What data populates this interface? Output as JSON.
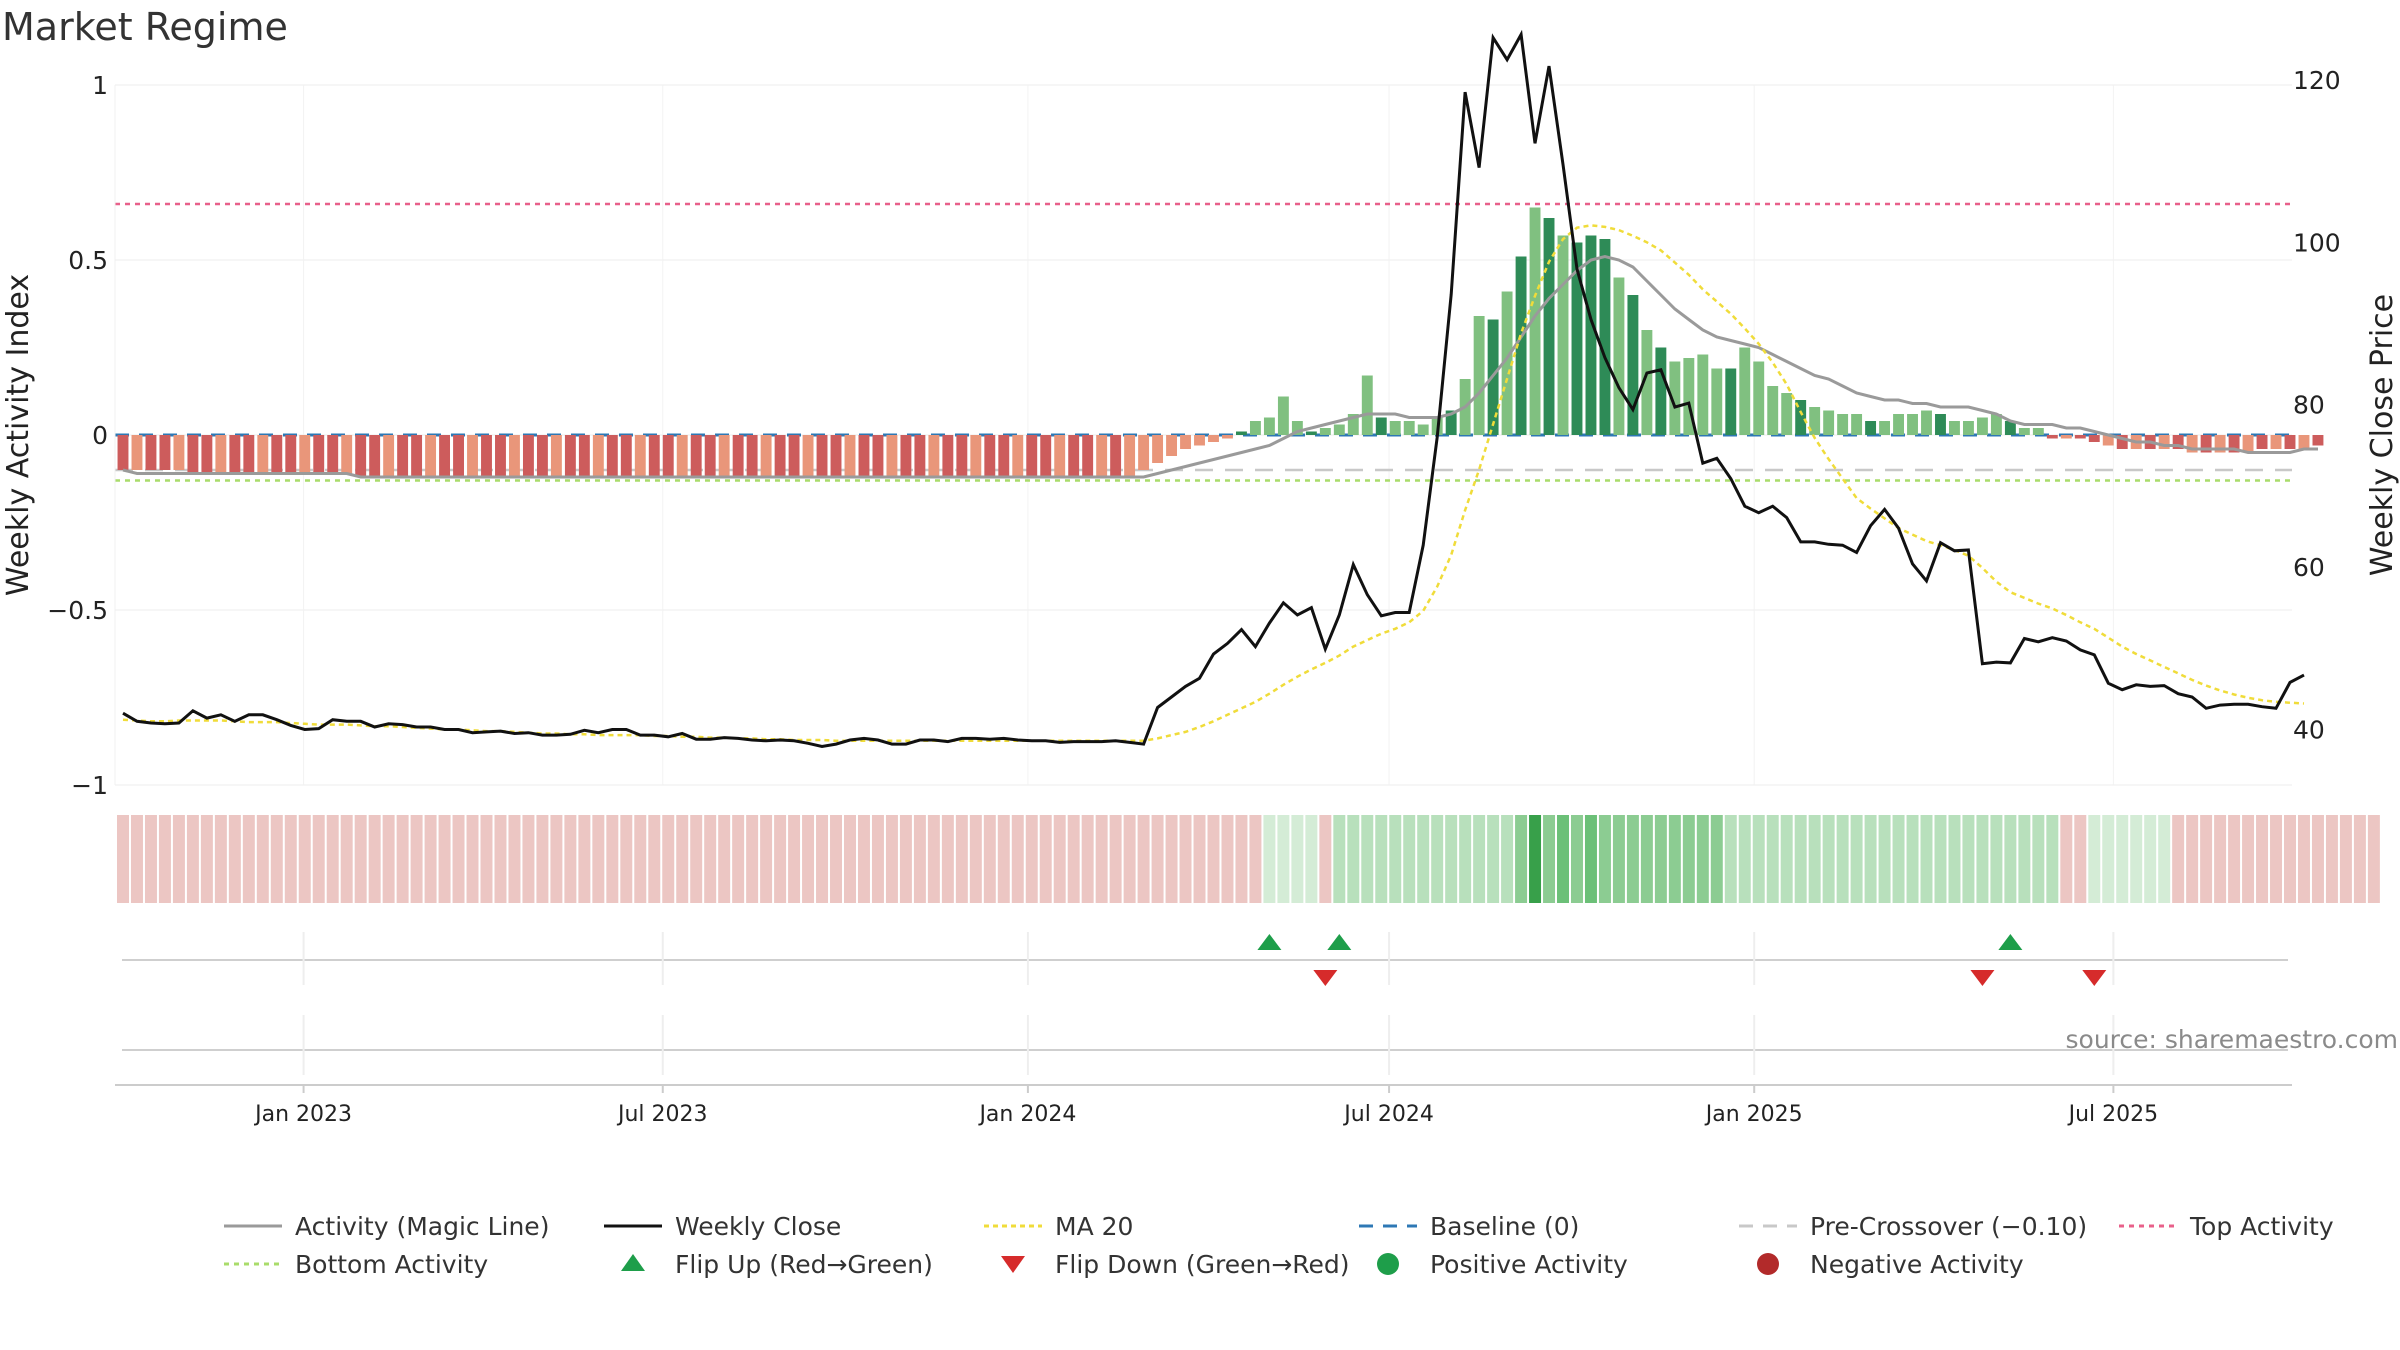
{
  "title": "Market Regime",
  "source": "source: sharemaestro.com",
  "colors": {
    "magic_line": "#9a9a9a",
    "close": "#111111",
    "ma20": "#f0dc3a",
    "baseline": "#2e78b5",
    "pre_crossover": "#c8c8c8",
    "top": "#e8608a",
    "bottom": "#a9dc6a",
    "flip_up": "#1e9e4a",
    "flip_down": "#d62b2b",
    "positive": "#1e9e4a",
    "negative": "#b22a2a",
    "bar_pos_strong": "#2e8b57",
    "bar_pos_weak": "#80c080",
    "bar_neg_strong": "#cd5c5c",
    "bar_neg_weak": "#e9967a"
  },
  "chart_data": {
    "type": "bar",
    "title": "Market Regime",
    "ylabel_left": "Weekly Activity Index",
    "ylabel_right": "Weekly Close Price",
    "ylim_left": [
      -1,
      1
    ],
    "ylim_right": [
      27,
      128
    ],
    "yticks_left": [
      "1",
      "0.5",
      "0",
      "−0.5",
      "−1"
    ],
    "ytick_values_left": [
      1,
      0.5,
      0,
      -0.5,
      -1
    ],
    "yticks_right": [
      "120",
      "100",
      "80",
      "60",
      "40"
    ],
    "ytick_values_right": [
      120,
      100,
      80,
      60,
      40
    ],
    "x_start": "2022-10-02",
    "x_end": "2025-09-28",
    "xticks": [
      {
        "label": "Jan 2023",
        "date": "2023-01-01"
      },
      {
        "label": "Jul 2023",
        "date": "2023-07-01"
      },
      {
        "label": "Jan 2024",
        "date": "2024-01-01"
      },
      {
        "label": "Jul 2024",
        "date": "2024-07-01"
      },
      {
        "label": "Jan 2025",
        "date": "2025-01-01"
      },
      {
        "label": "Jul 2025",
        "date": "2025-07-01"
      }
    ],
    "reference_lines": {
      "baseline": 0,
      "pre_crossover": -0.1,
      "top_activity": 0.66,
      "bottom_activity": -0.13
    },
    "weeks": 156,
    "activity": [
      -0.1,
      -0.1,
      -0.1,
      -0.1,
      -0.1,
      -0.11,
      -0.11,
      -0.11,
      -0.11,
      -0.11,
      -0.11,
      -0.11,
      -0.11,
      -0.11,
      -0.11,
      -0.11,
      -0.11,
      -0.12,
      -0.12,
      -0.12,
      -0.12,
      -0.12,
      -0.12,
      -0.12,
      -0.12,
      -0.12,
      -0.12,
      -0.12,
      -0.12,
      -0.12,
      -0.12,
      -0.12,
      -0.12,
      -0.12,
      -0.12,
      -0.12,
      -0.12,
      -0.12,
      -0.12,
      -0.12,
      -0.12,
      -0.12,
      -0.12,
      -0.12,
      -0.12,
      -0.12,
      -0.12,
      -0.12,
      -0.12,
      -0.12,
      -0.12,
      -0.12,
      -0.12,
      -0.12,
      -0.12,
      -0.12,
      -0.12,
      -0.12,
      -0.12,
      -0.12,
      -0.12,
      -0.12,
      -0.12,
      -0.12,
      -0.12,
      -0.12,
      -0.12,
      -0.12,
      -0.12,
      -0.12,
      -0.12,
      -0.12,
      -0.12,
      -0.1,
      -0.08,
      -0.06,
      -0.04,
      -0.03,
      -0.02,
      -0.01,
      0.01,
      0.04,
      0.05,
      0.11,
      0.04,
      0.01,
      0.02,
      0.03,
      0.06,
      0.17,
      0.05,
      0.04,
      0.04,
      0.03,
      0.05,
      0.07,
      0.16,
      0.34,
      0.33,
      0.41,
      0.51,
      0.65,
      0.62,
      0.57,
      0.55,
      0.57,
      0.56,
      0.45,
      0.4,
      0.3,
      0.25,
      0.21,
      0.22,
      0.23,
      0.19,
      0.19,
      0.25,
      0.21,
      0.14,
      0.12,
      0.1,
      0.08,
      0.07,
      0.06,
      0.06,
      0.04,
      0.04,
      0.06,
      0.06,
      0.07,
      0.06,
      0.04,
      0.04,
      0.05,
      0.06,
      0.04,
      0.02,
      0.02,
      -0.01,
      -0.01,
      -0.01,
      -0.02,
      -0.03,
      -0.04,
      -0.04,
      -0.04,
      -0.04,
      -0.04,
      -0.05,
      -0.05,
      -0.05,
      -0.05,
      -0.05,
      -0.04,
      -0.04,
      -0.04,
      -0.04,
      -0.03
    ],
    "magic_line": [
      -0.1,
      -0.11,
      -0.11,
      -0.11,
      -0.11,
      -0.11,
      -0.11,
      -0.11,
      -0.11,
      -0.11,
      -0.11,
      -0.11,
      -0.11,
      -0.11,
      -0.11,
      -0.11,
      -0.11,
      -0.12,
      -0.12,
      -0.12,
      -0.12,
      -0.12,
      -0.12,
      -0.12,
      -0.12,
      -0.12,
      -0.12,
      -0.12,
      -0.12,
      -0.12,
      -0.12,
      -0.12,
      -0.12,
      -0.12,
      -0.12,
      -0.12,
      -0.12,
      -0.12,
      -0.12,
      -0.12,
      -0.12,
      -0.12,
      -0.12,
      -0.12,
      -0.12,
      -0.12,
      -0.12,
      -0.12,
      -0.12,
      -0.12,
      -0.12,
      -0.12,
      -0.12,
      -0.12,
      -0.12,
      -0.12,
      -0.12,
      -0.12,
      -0.12,
      -0.12,
      -0.12,
      -0.12,
      -0.12,
      -0.12,
      -0.12,
      -0.12,
      -0.12,
      -0.12,
      -0.12,
      -0.12,
      -0.12,
      -0.12,
      -0.12,
      -0.12,
      -0.11,
      -0.1,
      -0.09,
      -0.08,
      -0.07,
      -0.06,
      -0.05,
      -0.04,
      -0.03,
      -0.01,
      0.01,
      0.02,
      0.03,
      0.04,
      0.05,
      0.06,
      0.06,
      0.06,
      0.05,
      0.05,
      0.05,
      0.06,
      0.08,
      0.12,
      0.17,
      0.22,
      0.28,
      0.34,
      0.39,
      0.43,
      0.47,
      0.5,
      0.51,
      0.5,
      0.48,
      0.44,
      0.4,
      0.36,
      0.33,
      0.3,
      0.28,
      0.27,
      0.26,
      0.25,
      0.23,
      0.21,
      0.19,
      0.17,
      0.16,
      0.14,
      0.12,
      0.11,
      0.1,
      0.1,
      0.09,
      0.09,
      0.08,
      0.08,
      0.08,
      0.07,
      0.06,
      0.04,
      0.03,
      0.03,
      0.03,
      0.02,
      0.02,
      0.01,
      0.0,
      -0.01,
      -0.02,
      -0.02,
      -0.03,
      -0.03,
      -0.04,
      -0.04,
      -0.04,
      -0.04,
      -0.05,
      -0.05,
      -0.05,
      -0.05,
      -0.04,
      -0.04
    ],
    "weekly_close": [
      42.0,
      41.0,
      40.8,
      40.7,
      40.8,
      42.3,
      41.4,
      41.8,
      41.0,
      41.8,
      41.8,
      41.2,
      40.5,
      40.0,
      40.1,
      41.2,
      41.0,
      41.0,
      40.3,
      40.7,
      40.6,
      40.3,
      40.3,
      40.0,
      40.0,
      39.6,
      39.7,
      39.8,
      39.5,
      39.6,
      39.3,
      39.3,
      39.4,
      39.9,
      39.6,
      40.0,
      40.0,
      39.3,
      39.3,
      39.1,
      39.5,
      38.8,
      38.8,
      39.0,
      38.9,
      38.7,
      38.6,
      38.7,
      38.6,
      38.3,
      37.9,
      38.2,
      38.7,
      38.9,
      38.7,
      38.2,
      38.2,
      38.7,
      38.7,
      38.5,
      38.9,
      38.9,
      38.8,
      38.9,
      38.7,
      38.6,
      38.6,
      38.4,
      38.5,
      38.5,
      38.5,
      38.6,
      38.4,
      38.2,
      42.7,
      44.0,
      45.3,
      46.3,
      49.3,
      50.6,
      52.3,
      50.2,
      53.1,
      55.6,
      54.1,
      55.0,
      49.9,
      54.1,
      60.3,
      56.6,
      54.0,
      54.4,
      54.4,
      62.7,
      76.0,
      93.6,
      118.5,
      109.2,
      125.2,
      122.5,
      125.6,
      112.2,
      121.7,
      109.6,
      96.7,
      90.5,
      85.8,
      82.1,
      79.4,
      83.9,
      84.3,
      79.7,
      80.2,
      72.8,
      73.4,
      70.9,
      67.5,
      66.7,
      67.5,
      66.1,
      63.1,
      63.1,
      62.8,
      62.7,
      61.8,
      65.1,
      67.1,
      64.8,
      60.4,
      58.3,
      63.0,
      62.0,
      62.1,
      48.1,
      48.3,
      48.2,
      51.2,
      50.8,
      51.3,
      50.9,
      49.8,
      49.2,
      45.7,
      44.9,
      45.5,
      45.3,
      45.4,
      44.4,
      44.0,
      42.6,
      43.0,
      43.1,
      43.1,
      42.8,
      42.6,
      45.8,
      46.7
    ],
    "ma20": [
      41.2,
      41.1,
      41.0,
      41.0,
      41.1,
      41.1,
      41.1,
      41.1,
      41.0,
      40.9,
      40.9,
      40.9,
      40.8,
      40.7,
      40.6,
      40.6,
      40.6,
      40.5,
      40.4,
      40.4,
      40.3,
      40.2,
      40.1,
      40.0,
      40.0,
      39.9,
      39.8,
      39.8,
      39.7,
      39.6,
      39.5,
      39.5,
      39.4,
      39.4,
      39.3,
      39.3,
      39.3,
      39.3,
      39.2,
      39.2,
      39.1,
      39.1,
      39.0,
      39.0,
      38.9,
      38.9,
      38.8,
      38.8,
      38.7,
      38.7,
      38.7,
      38.6,
      38.6,
      38.6,
      38.6,
      38.6,
      38.6,
      38.6,
      38.6,
      38.6,
      38.6,
      38.6,
      38.6,
      38.6,
      38.6,
      38.6,
      38.6,
      38.6,
      38.6,
      38.6,
      38.6,
      38.6,
      38.6,
      38.6,
      38.9,
      39.3,
      39.7,
      40.3,
      41.0,
      41.8,
      42.6,
      43.4,
      44.4,
      45.5,
      46.5,
      47.4,
      48.2,
      49.1,
      50.2,
      51.0,
      51.8,
      52.4,
      53.2,
      54.6,
      57.6,
      61.5,
      67.0,
      72.0,
      77.6,
      83.2,
      88.8,
      93.4,
      97.6,
      100.4,
      101.8,
      102.1,
      101.9,
      101.5,
      100.8,
      100.0,
      99.0,
      97.5,
      96.0,
      94.2,
      92.7,
      91.2,
      89.4,
      87.5,
      85.2,
      82.5,
      79.1,
      75.9,
      73.3,
      70.9,
      68.5,
      67.2,
      66.0,
      64.8,
      64.0,
      63.2,
      62.7,
      62.1,
      61.4,
      59.9,
      58.2,
      56.9,
      56.2,
      55.5,
      54.9,
      54.1,
      53.2,
      52.4,
      51.3,
      50.2,
      49.3,
      48.5,
      47.7,
      46.9,
      46.1,
      45.4,
      44.8,
      44.3,
      43.9,
      43.6,
      43.4,
      43.3,
      43.2
    ],
    "regime_strip": [
      -1,
      -1,
      -1,
      -1,
      -1,
      -1,
      -1,
      -1,
      -1,
      -1,
      -1,
      -1,
      -1,
      -1,
      -1,
      -1,
      -1,
      -1,
      -1,
      -1,
      -1,
      -1,
      -1,
      -1,
      -1,
      -1,
      -1,
      -1,
      -1,
      -1,
      -1,
      -1,
      -1,
      -1,
      -1,
      -1,
      -1,
      -1,
      -1,
      -1,
      -1,
      -1,
      -1,
      -1,
      -1,
      -1,
      -1,
      -1,
      -1,
      -1,
      -1,
      -1,
      -1,
      -1,
      -1,
      -1,
      -1,
      -1,
      -1,
      -1,
      -1,
      -1,
      -1,
      -1,
      -1,
      -1,
      -1,
      -1,
      -1,
      -1,
      -1,
      -1,
      -1,
      -1,
      -1,
      -1,
      -1,
      -1,
      -1,
      -1,
      -1,
      -1,
      1,
      1,
      1,
      1,
      -1,
      2,
      2,
      2,
      2,
      2,
      2,
      2,
      2,
      2,
      2,
      2,
      2,
      2,
      3,
      5,
      3,
      4,
      3,
      4,
      3,
      3,
      3,
      3,
      3,
      3,
      3,
      3,
      3,
      2,
      2,
      2,
      2,
      2,
      2,
      2,
      2,
      2,
      2,
      2,
      2,
      2,
      2,
      2,
      2,
      2,
      2,
      2,
      2,
      2,
      2,
      2,
      2,
      -1,
      -1,
      1,
      1,
      1,
      1,
      1,
      1,
      -1,
      -1,
      -1,
      -1,
      -1,
      -1,
      -1,
      -1,
      -1,
      -1,
      -1,
      -1,
      -1,
      -1,
      -1
    ],
    "flip_up_weeks": [
      82,
      87,
      135
    ],
    "flip_down_weeks": [
      86,
      133,
      141
    ]
  },
  "legend": [
    {
      "label": "Activity (Magic Line)",
      "key": "magic"
    },
    {
      "label": "Weekly Close",
      "key": "close"
    },
    {
      "label": "MA 20",
      "key": "ma20"
    },
    {
      "label": "Baseline (0)",
      "key": "baseline"
    },
    {
      "label": "Pre-Crossover (−0.10)",
      "key": "pre"
    },
    {
      "label": "Top Activity",
      "key": "top"
    },
    {
      "label": "Bottom Activity",
      "key": "bottom"
    },
    {
      "label": "Flip Up (Red→Green)",
      "key": "flipup"
    },
    {
      "label": "Flip Down (Green→Red)",
      "key": "flipdown"
    },
    {
      "label": "Positive Activity",
      "key": "positive"
    },
    {
      "label": "Negative Activity",
      "key": "negative"
    }
  ]
}
